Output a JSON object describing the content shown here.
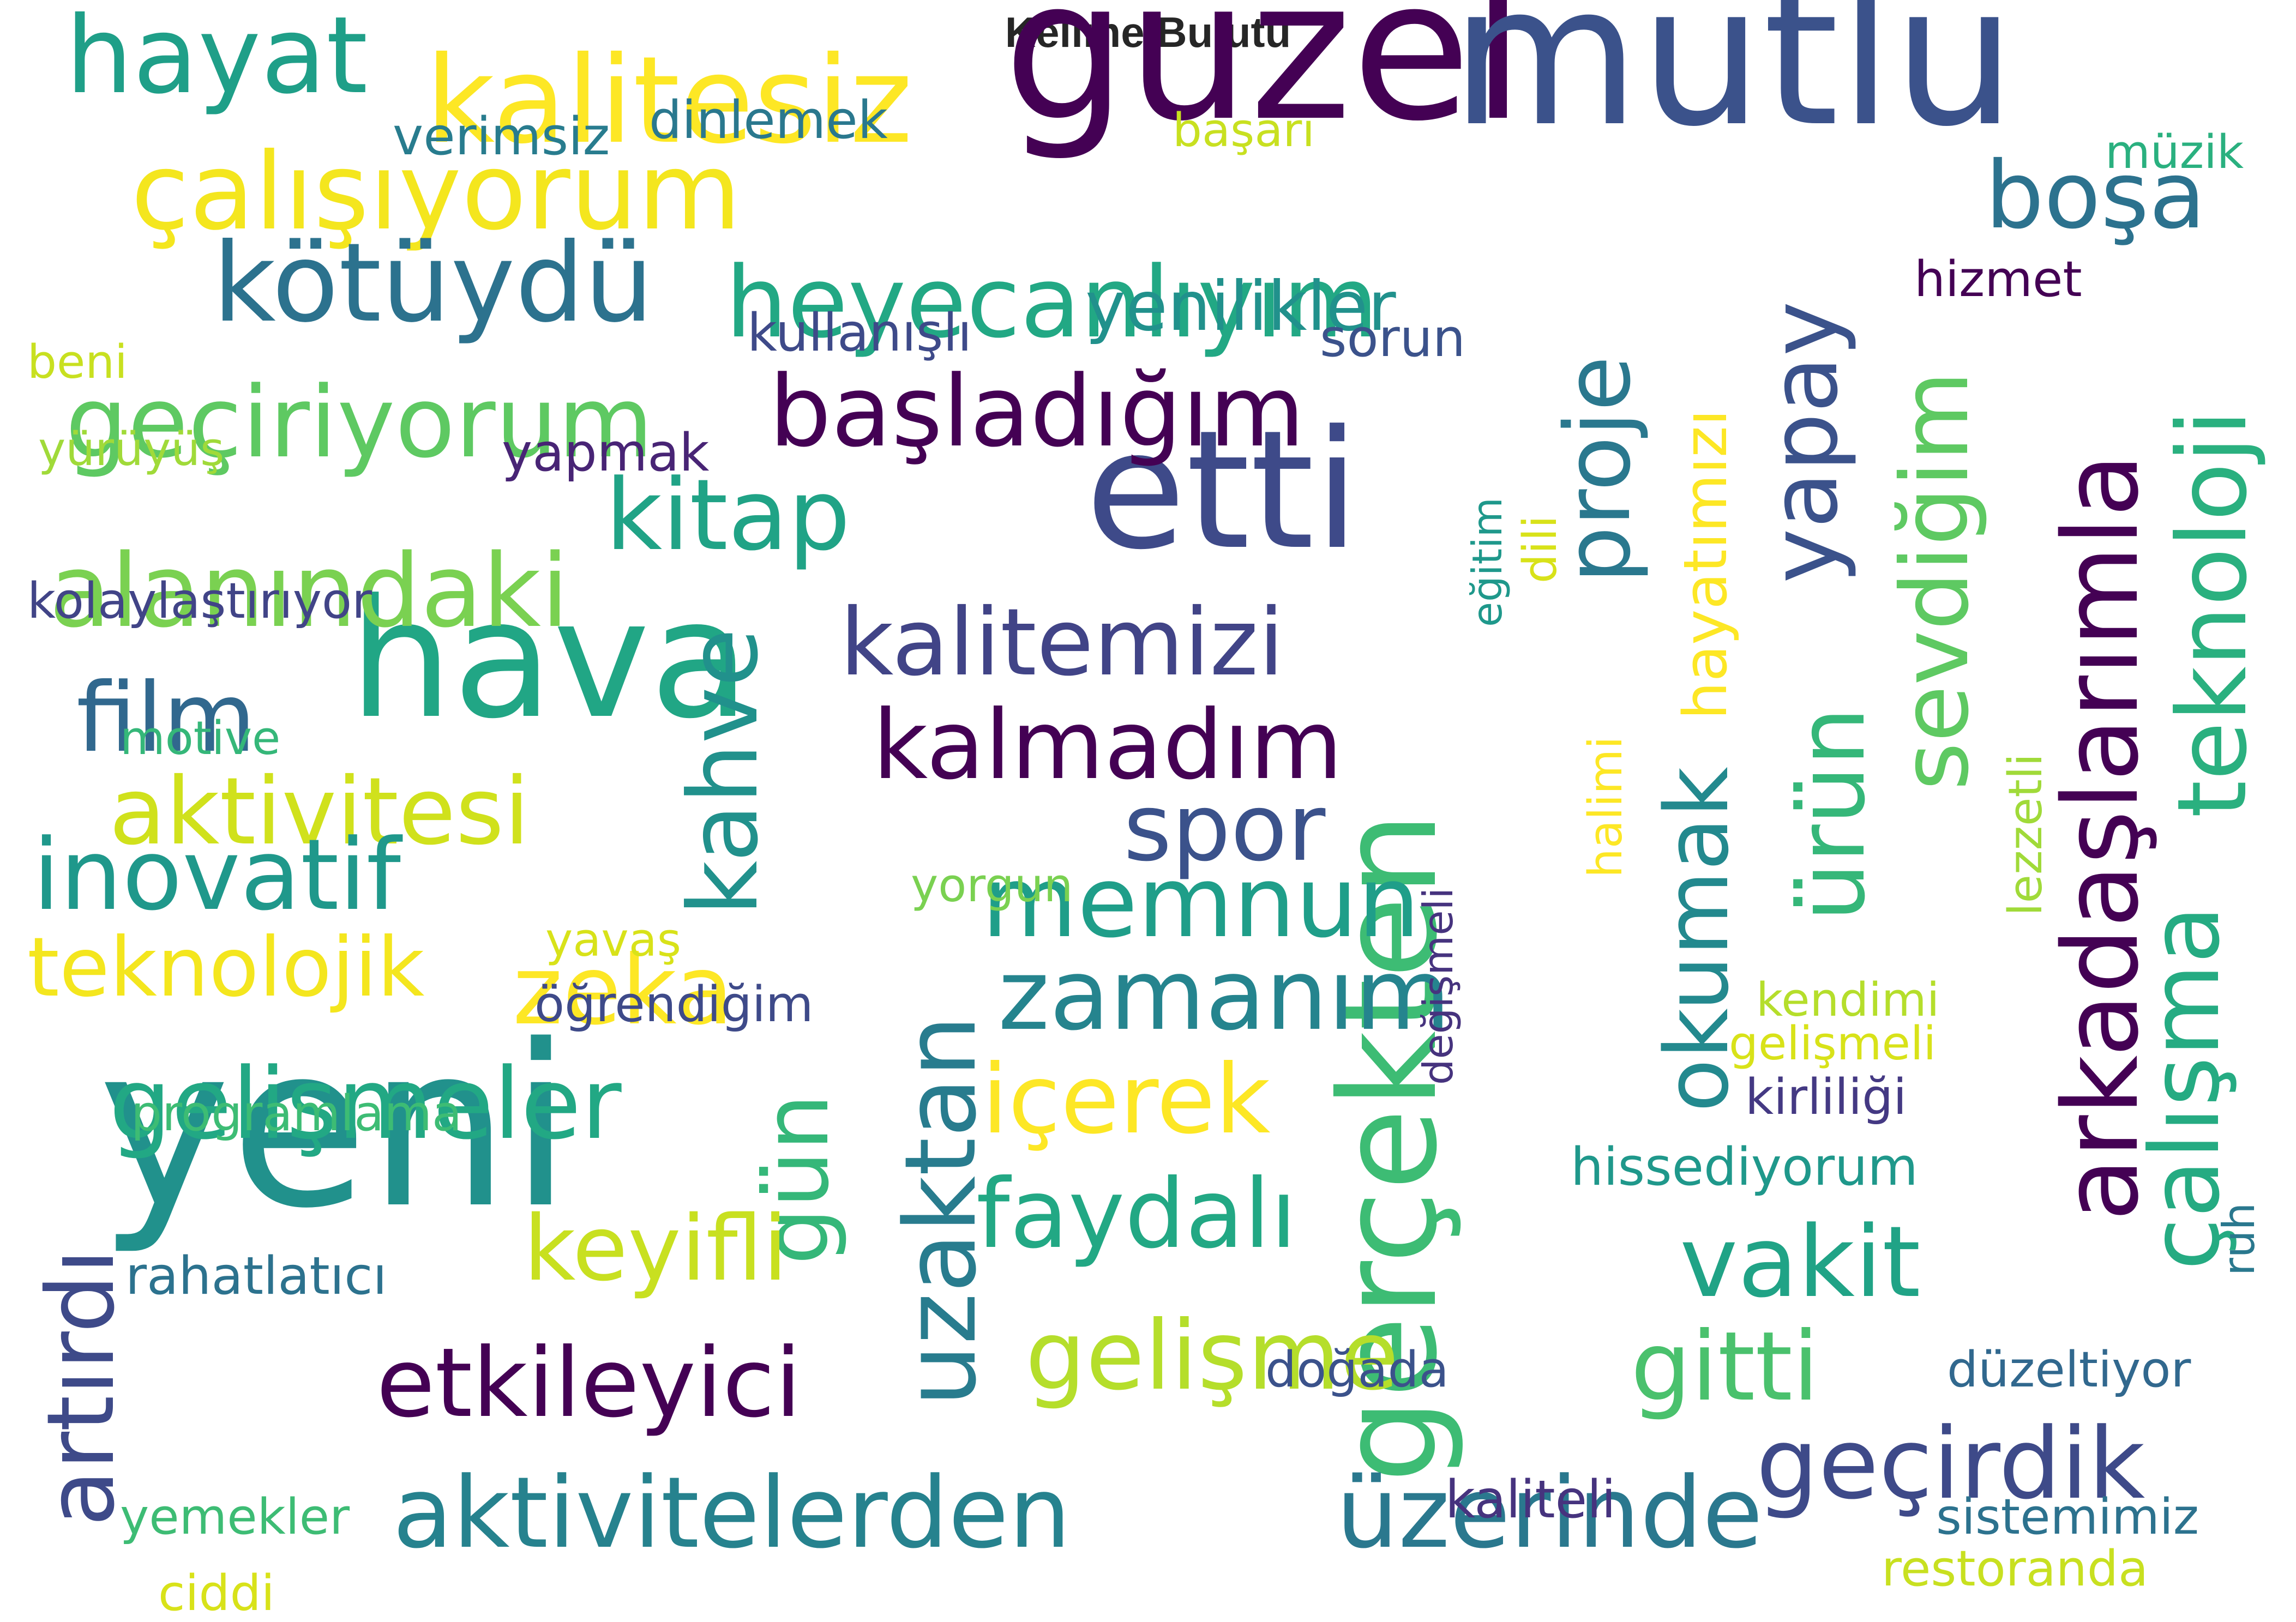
{
  "title": "Kelime Bulutu",
  "words": [
    {
      "text": "güzel",
      "color": "#440154"
    },
    {
      "text": "mutlu",
      "color": "#3b528b"
    },
    {
      "text": "yeni",
      "color": "#21918c"
    },
    {
      "text": "hava",
      "color": "#21a685"
    },
    {
      "text": "etti",
      "color": "#3e4a89"
    },
    {
      "text": "gerçekten",
      "color": "#3dbc74"
    },
    {
      "text": "kalitesiz",
      "color": "#fde725"
    },
    {
      "text": "hayat",
      "color": "#1f9f88"
    },
    {
      "text": "çalışıyorum",
      "color": "#f4e61e"
    },
    {
      "text": "kötüydü",
      "color": "#2c728e"
    },
    {
      "text": "heyecanlıyım",
      "color": "#22a884"
    },
    {
      "text": "geçiriyorum",
      "color": "#5ec962"
    },
    {
      "text": "başladığım",
      "color": "#440154"
    },
    {
      "text": "kitap",
      "color": "#20a386"
    },
    {
      "text": "alanındaki",
      "color": "#7ad151"
    },
    {
      "text": "kalitemizi",
      "color": "#414487"
    },
    {
      "text": "film",
      "color": "#31688e"
    },
    {
      "text": "kahve",
      "color": "#21918c"
    },
    {
      "text": "kalmadım",
      "color": "#440154"
    },
    {
      "text": "aktivitesi",
      "color": "#d0e11c"
    },
    {
      "text": "spor",
      "color": "#3b528b"
    },
    {
      "text": "inovatif",
      "color": "#1f988b"
    },
    {
      "text": "memnun",
      "color": "#1f9e89"
    },
    {
      "text": "teknolojik",
      "color": "#f4e61e"
    },
    {
      "text": "zeka",
      "color": "#fde725"
    },
    {
      "text": "zamanım",
      "color": "#25848e"
    },
    {
      "text": "gelişmeler",
      "color": "#22a884"
    },
    {
      "text": "içerek",
      "color": "#fde725"
    },
    {
      "text": "gün",
      "color": "#35b779"
    },
    {
      "text": "uzaktan",
      "color": "#287c8e"
    },
    {
      "text": "artırdı",
      "color": "#3e4a89"
    },
    {
      "text": "faydalı",
      "color": "#22a884"
    },
    {
      "text": "keyifli",
      "color": "#c8e020"
    },
    {
      "text": "etkileyici",
      "color": "#440154"
    },
    {
      "text": "gelişme",
      "color": "#b5de2b"
    },
    {
      "text": "aktivitelerden",
      "color": "#26828e"
    },
    {
      "text": "üzerinde",
      "color": "#2a788e"
    },
    {
      "text": "proje",
      "color": "#2a788e"
    },
    {
      "text": "yapay",
      "color": "#3b528b"
    },
    {
      "text": "hayatımızı",
      "color": "#fde725"
    },
    {
      "text": "okumak",
      "color": "#23898e"
    },
    {
      "text": "ürün",
      "color": "#35b779"
    },
    {
      "text": "sevdiğim",
      "color": "#5ec962"
    },
    {
      "text": "arkadaşlarımla",
      "color": "#440154"
    },
    {
      "text": "teknoloji",
      "color": "#2ab07f"
    },
    {
      "text": "çalışma",
      "color": "#25ab82"
    },
    {
      "text": "vakit",
      "color": "#20a386"
    },
    {
      "text": "gitti",
      "color": "#4ac16d"
    },
    {
      "text": "geçirdik",
      "color": "#3e4a89"
    },
    {
      "text": "boşa",
      "color": "#2c728e"
    },
    {
      "text": "yenilikler",
      "color": "#21918c"
    },
    {
      "text": "müzik",
      "color": "#2ab07f"
    },
    {
      "text": "hizmet",
      "color": "#440154"
    },
    {
      "text": "başarı",
      "color": "#c8e020"
    },
    {
      "text": "dinlemek",
      "color": "#2a788e"
    },
    {
      "text": "verimsiz",
      "color": "#287c8e"
    },
    {
      "text": "kullanışlı",
      "color": "#3e4a89"
    },
    {
      "text": "sorun",
      "color": "#3b528b"
    },
    {
      "text": "beni",
      "color": "#c8e020"
    },
    {
      "text": "yürüyüş",
      "color": "#a0da39"
    },
    {
      "text": "yapmak",
      "color": "#482475"
    },
    {
      "text": "kolaylaştırıyor",
      "color": "#414487"
    },
    {
      "text": "eğitim",
      "color": "#1f988b"
    },
    {
      "text": "dili",
      "color": "#d8e219"
    },
    {
      "text": "motive",
      "color": "#35b779"
    },
    {
      "text": "halimi",
      "color": "#fde725"
    },
    {
      "text": "değişmeli",
      "color": "#46337e"
    },
    {
      "text": "lezzetli",
      "color": "#a0da39"
    },
    {
      "text": "yorgun",
      "color": "#7ad151"
    },
    {
      "text": "yavaş",
      "color": "#d8e219"
    },
    {
      "text": "öğrendiğim",
      "color": "#3e4a89"
    },
    {
      "text": "kendimi",
      "color": "#b5de2b"
    },
    {
      "text": "gelişmeli",
      "color": "#d8e219"
    },
    {
      "text": "kirliliği",
      "color": "#443983"
    },
    {
      "text": "programlama",
      "color": "#3dbc74"
    },
    {
      "text": "hissediyorum",
      "color": "#1f988b"
    },
    {
      "text": "ruh",
      "color": "#2a788e"
    },
    {
      "text": "rahatlatıcı",
      "color": "#2c728e"
    },
    {
      "text": "doğada",
      "color": "#3b528b"
    },
    {
      "text": "düzeltiyor",
      "color": "#31688e"
    },
    {
      "text": "kaliteli",
      "color": "#46337e"
    },
    {
      "text": "sistemimiz",
      "color": "#2c728e"
    },
    {
      "text": "yemekler",
      "color": "#3dbc74"
    },
    {
      "text": "restoranda",
      "color": "#c8e020"
    },
    {
      "text": "ciddi",
      "color": "#d8e219"
    }
  ]
}
